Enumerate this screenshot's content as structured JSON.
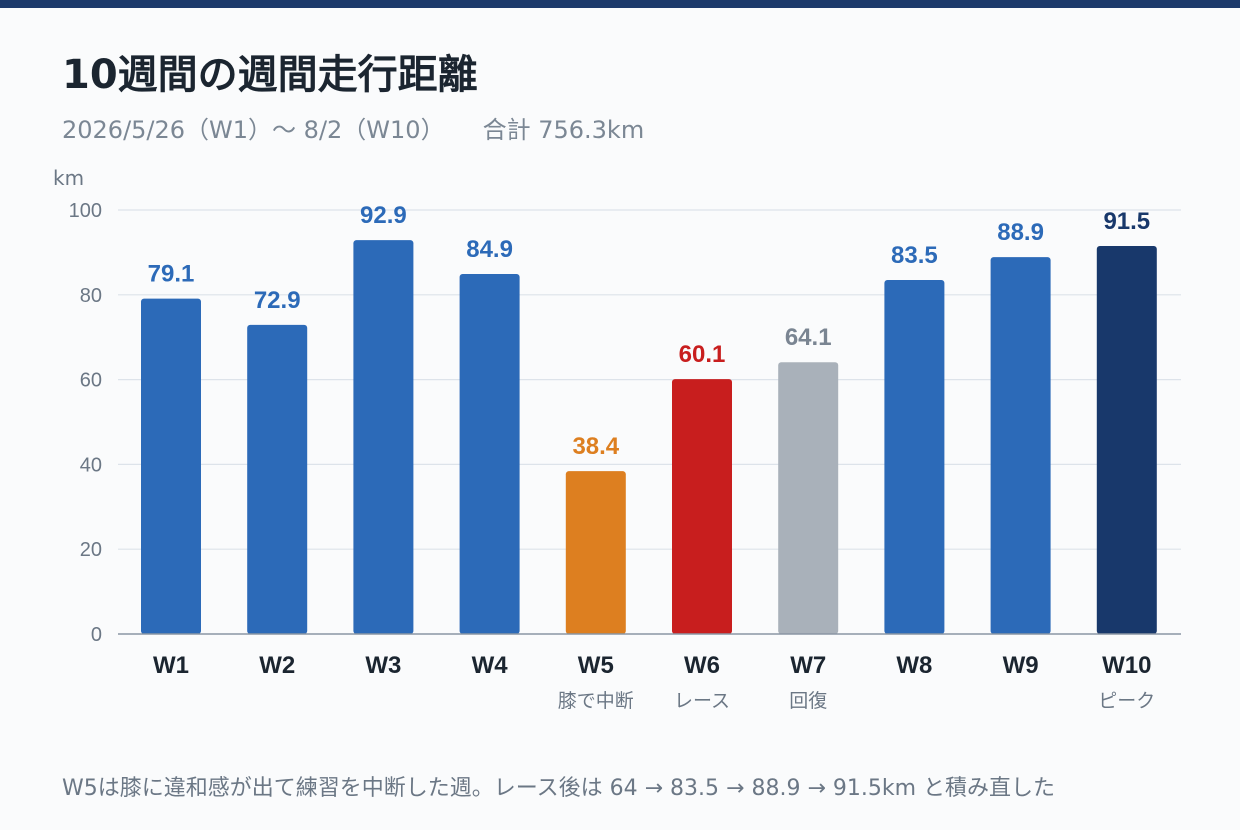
{
  "title": "10週間の週間走行距離",
  "subtitle": {
    "range": "2026/5/26（W1）〜 8/2（W10）",
    "total": "合計 756.3km"
  },
  "footnote": "W5は膝に違和感が出て練習を中断した週。レース後は 64 → 83.5 → 88.9 → 91.5km と積み直した",
  "colors": {
    "normal": "#2c6ab8",
    "knee": "#dd7f20",
    "race": "#c81e1e",
    "recovery": "#a9b1ba",
    "peak": "#18386b"
  },
  "chart_data": {
    "type": "bar",
    "ylabel": "km",
    "ylim": [
      0,
      100
    ],
    "yticks": [
      0,
      20,
      40,
      60,
      80,
      100
    ],
    "grid": true,
    "categories": [
      "W1",
      "W2",
      "W3",
      "W4",
      "W5",
      "W6",
      "W7",
      "W8",
      "W9",
      "W10"
    ],
    "values": [
      79.1,
      72.9,
      92.9,
      84.9,
      38.4,
      60.1,
      64.1,
      83.5,
      88.9,
      91.5
    ],
    "value_labels": [
      "79.1",
      "72.9",
      "92.9",
      "84.9",
      "38.4",
      "60.1",
      "64.1",
      "83.5",
      "88.9",
      "91.5"
    ],
    "annotations": [
      "",
      "",
      "",
      "",
      "膝で中断",
      "レース",
      "回復",
      "",
      "",
      "ピーク"
    ],
    "bar_kinds": [
      "normal",
      "normal",
      "normal",
      "normal",
      "knee",
      "race",
      "recovery",
      "normal",
      "normal",
      "peak"
    ]
  }
}
